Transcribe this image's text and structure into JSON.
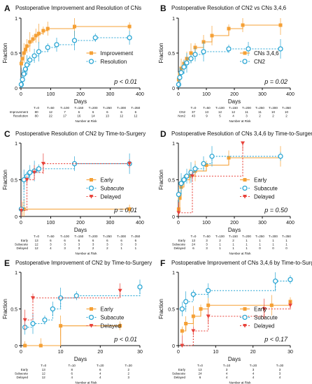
{
  "chart_data": [
    {
      "panel": "A",
      "type": "line",
      "title": "Postoperative Improvement and Resolution of CNs",
      "xlabel": "Days",
      "ylabel": "Fraction",
      "xlim": [
        0,
        400
      ],
      "ylim": [
        0,
        1
      ],
      "xticks": [
        0,
        100,
        200,
        300,
        400
      ],
      "yticks": [
        0,
        0.5,
        1
      ],
      "legend_position": "center-right",
      "annotation": "p < 0.01",
      "series": [
        {
          "name": "Improvement",
          "color": "#f5a035",
          "marker": "square",
          "dashed": false,
          "x": [
            1,
            5,
            10,
            15,
            20,
            30,
            40,
            50,
            60,
            75,
            90,
            180,
            365
          ],
          "y": [
            0.35,
            0.42,
            0.5,
            0.55,
            0.6,
            0.66,
            0.7,
            0.75,
            0.78,
            0.82,
            0.85,
            0.88,
            0.88
          ]
        },
        {
          "name": "Resolution",
          "color": "#2aa6d4",
          "marker": "circle",
          "dashed": true,
          "x": [
            1,
            5,
            10,
            15,
            20,
            30,
            45,
            60,
            90,
            120,
            180,
            250,
            365
          ],
          "y": [
            0.05,
            0.12,
            0.2,
            0.27,
            0.33,
            0.4,
            0.46,
            0.52,
            0.58,
            0.62,
            0.68,
            0.72,
            0.72
          ]
        }
      ],
      "risk_table": {
        "times": [
          "T=0",
          "T=50",
          "T=100",
          "T=150",
          "T=200",
          "T=250",
          "T=300",
          "T=350"
        ],
        "rows": [
          {
            "label": "Improvement",
            "values": [
              "80",
              "12",
              "7",
              "6",
              "6",
              "6",
              "6",
              "6"
            ]
          },
          {
            "label": "Resolution",
            "values": [
              "80",
              "22",
              "17",
              "16",
              "14",
              "13",
              "12",
              "12"
            ]
          }
        ],
        "caption": "Number at Risk"
      }
    },
    {
      "panel": "B",
      "type": "line",
      "title": "Postoperative Resolution of CN2 vs CNs 3,4,6",
      "xlabel": "Days",
      "ylabel": "Fraction",
      "xlim": [
        0,
        400
      ],
      "ylim": [
        0,
        1
      ],
      "xticks": [
        0,
        100,
        200,
        300,
        400
      ],
      "yticks": [
        0,
        0.5,
        1
      ],
      "legend_position": "center-right",
      "annotation": "p = 0.02",
      "series": [
        {
          "name": "CNs 3,4,6",
          "color": "#f5a035",
          "marker": "square",
          "dashed": false,
          "x": [
            1,
            5,
            10,
            20,
            30,
            45,
            60,
            90,
            120,
            180,
            230,
            365
          ],
          "y": [
            0.12,
            0.2,
            0.28,
            0.35,
            0.42,
            0.5,
            0.58,
            0.66,
            0.75,
            0.85,
            0.9,
            0.9
          ]
        },
        {
          "name": "CN2",
          "color": "#2aa6d4",
          "marker": "circle",
          "dashed": true,
          "x": [
            1,
            5,
            10,
            20,
            30,
            45,
            60,
            90,
            180,
            250,
            365
          ],
          "y": [
            0.05,
            0.15,
            0.22,
            0.3,
            0.36,
            0.42,
            0.48,
            0.52,
            0.56,
            0.56,
            0.56
          ]
        }
      ],
      "risk_table": {
        "times": [
          "T=0",
          "T=50",
          "T=100",
          "T=150",
          "T=200",
          "T=250",
          "T=300",
          "T=350"
        ],
        "rows": [
          {
            "label": "CN2",
            "values": [
              "37",
              "13",
              "12",
              "12",
              "11",
              "11",
              "10",
              "10"
            ]
          },
          {
            "label": "Non2",
            "values": [
              "43",
              "9",
              "5",
              "4",
              "3",
              "2",
              "2",
              "2"
            ]
          }
        ],
        "caption": "Number at Risk"
      }
    },
    {
      "panel": "C",
      "type": "line",
      "title": "Postoperative Resolution of CN2 by Time-to-Surgery",
      "xlabel": "Days",
      "ylabel": "Fraction",
      "xlim": [
        0,
        400
      ],
      "ylim": [
        0,
        1
      ],
      "xticks": [
        0,
        100,
        200,
        300,
        400
      ],
      "yticks": [
        0,
        0.5,
        1
      ],
      "legend_position": "center-right",
      "annotation": "p = 0.01",
      "series": [
        {
          "name": "Early",
          "color": "#f5a035",
          "marker": "square",
          "dashed": false,
          "x": [
            1,
            5,
            10,
            365
          ],
          "y": [
            0.1,
            0.1,
            0.1,
            0.1
          ]
        },
        {
          "name": "Subacute",
          "color": "#2aa6d4",
          "marker": "circle",
          "dashed": true,
          "x": [
            1,
            10,
            20,
            30,
            45,
            60,
            180,
            365
          ],
          "y": [
            0.1,
            0.5,
            0.55,
            0.6,
            0.62,
            0.65,
            0.72,
            0.72
          ]
        },
        {
          "name": "Delayed",
          "color": "#e8423a",
          "marker": "triangle",
          "dashed": true,
          "x": [
            1,
            20,
            45,
            75,
            365
          ],
          "y": [
            0.08,
            0.5,
            0.6,
            0.72,
            0.72
          ]
        }
      ],
      "risk_table": {
        "times": [
          "T=0",
          "T=50",
          "T=100",
          "T=150",
          "T=200",
          "T=250",
          "T=300",
          "T=350"
        ],
        "rows": [
          {
            "label": "Early",
            "values": [
              "13",
              "6",
              "6",
              "6",
              "6",
              "6",
              "6",
              "6"
            ]
          },
          {
            "label": "Subacute",
            "values": [
              "12",
              "3",
              "3",
              "3",
              "3",
              "3",
              "3",
              "3"
            ]
          },
          {
            "label": "Delayed",
            "values": [
              "12",
              "4",
              "3",
              "3",
              "2",
              "2",
              "1",
              "1"
            ]
          }
        ],
        "caption": "Number at Risk"
      }
    },
    {
      "panel": "D",
      "type": "line",
      "title": "Postoperative Resolution of CNs 3,4,6 by Time-to-Surgery",
      "xlabel": "Days",
      "ylabel": "Fraction",
      "xlim": [
        0,
        400
      ],
      "ylim": [
        0,
        1
      ],
      "xticks": [
        0,
        100,
        200,
        300,
        400
      ],
      "yticks": [
        0,
        0.5,
        1
      ],
      "legend_position": "center-right",
      "annotation": "p = 0.50",
      "series": [
        {
          "name": "Early",
          "color": "#f5a035",
          "marker": "square",
          "dashed": false,
          "x": [
            1,
            5,
            10,
            20,
            40,
            60,
            100,
            180,
            365
          ],
          "y": [
            0.1,
            0.25,
            0.4,
            0.5,
            0.55,
            0.62,
            0.7,
            0.8,
            0.82
          ]
        },
        {
          "name": "Subacute",
          "color": "#2aa6d4",
          "marker": "circle",
          "dashed": true,
          "x": [
            1,
            10,
            20,
            30,
            45,
            60,
            90,
            120,
            365
          ],
          "y": [
            0.3,
            0.45,
            0.5,
            0.55,
            0.6,
            0.65,
            0.72,
            0.82,
            0.82
          ]
        },
        {
          "name": "Delayed",
          "color": "#e8423a",
          "marker": "triangle",
          "dashed": true,
          "x": [
            1,
            50,
            230
          ],
          "y": [
            0.05,
            0.55,
            1.0
          ]
        }
      ],
      "risk_table": {
        "times": [
          "T=0",
          "T=50",
          "T=100",
          "T=150",
          "T=200",
          "T=250",
          "T=300",
          "T=350"
        ],
        "rows": [
          {
            "label": "Early",
            "values": [
              "13",
              "3",
              "2",
              "2",
              "1",
              "1",
              "1",
              "1"
            ]
          },
          {
            "label": "Subacute",
            "values": [
              "24",
              "3",
              "1",
              "1",
              "1",
              "1",
              "1",
              "1"
            ]
          },
          {
            "label": "Delayed",
            "values": [
              "6",
              "3",
              "1",
              "1",
              "1",
              "0",
              "0",
              "0"
            ]
          }
        ],
        "caption": "Number at Risk"
      }
    },
    {
      "panel": "E",
      "type": "line",
      "title": "Postoperative Improvement of CN2 by Time-to-Surgery",
      "xlabel": "Days",
      "ylabel": "Fraction",
      "xlim": [
        0,
        30
      ],
      "ylim": [
        0,
        1
      ],
      "xticks": [
        0,
        10,
        20,
        30
      ],
      "yticks": [
        0,
        0.5,
        1
      ],
      "legend_position": "center-right",
      "annotation": "p < 0.01",
      "series": [
        {
          "name": "Early",
          "color": "#f5a035",
          "marker": "square",
          "dashed": false,
          "x": [
            1,
            5,
            10,
            25
          ],
          "y": [
            0.0,
            0.0,
            0.27,
            0.27
          ]
        },
        {
          "name": "Subacute",
          "color": "#2aa6d4",
          "marker": "circle",
          "dashed": true,
          "x": [
            1,
            3,
            6,
            8,
            10,
            14,
            30
          ],
          "y": [
            0.25,
            0.3,
            0.35,
            0.5,
            0.65,
            0.68,
            0.8
          ]
        },
        {
          "name": "Delayed",
          "color": "#e8423a",
          "marker": "triangle",
          "dashed": true,
          "x": [
            1,
            3,
            25
          ],
          "y": [
            0.35,
            0.65,
            0.75
          ]
        }
      ],
      "risk_table": {
        "times": [
          "T=0",
          "T=10",
          "T=20",
          "T=30"
        ],
        "rows": [
          {
            "label": "Early",
            "values": [
              "13",
              "8",
              "6",
              "2"
            ]
          },
          {
            "label": "Subacute",
            "values": [
              "12",
              "6",
              "4",
              "2"
            ]
          },
          {
            "label": "Delayed",
            "values": [
              "12",
              "4",
              "4",
              "3"
            ]
          }
        ],
        "caption": "Number at Risk"
      }
    },
    {
      "panel": "F",
      "type": "line",
      "title": "Postoperative Improvement of CNs 3,4,6 by Time-to-Surgery",
      "xlabel": "Days",
      "ylabel": "Fraction",
      "xlim": [
        0,
        30
      ],
      "ylim": [
        0,
        1
      ],
      "xticks": [
        0,
        10,
        20,
        30
      ],
      "yticks": [
        0,
        0.5,
        1
      ],
      "legend_position": "center-right",
      "annotation": "p < 0.17",
      "series": [
        {
          "name": "Early",
          "color": "#f5a035",
          "marker": "square",
          "dashed": false,
          "x": [
            1,
            2,
            4,
            6,
            8,
            25,
            30
          ],
          "y": [
            0.2,
            0.3,
            0.4,
            0.5,
            0.55,
            0.55,
            0.6
          ]
        },
        {
          "name": "Subacute",
          "color": "#2aa6d4",
          "marker": "circle",
          "dashed": true,
          "x": [
            1,
            2,
            4,
            8,
            26,
            30
          ],
          "y": [
            0.5,
            0.6,
            0.7,
            0.75,
            0.88,
            0.9
          ]
        },
        {
          "name": "Delayed",
          "color": "#e8423a",
          "marker": "triangle",
          "dashed": true,
          "x": [
            1,
            4,
            8,
            23,
            30
          ],
          "y": [
            0.0,
            0.2,
            0.4,
            0.5,
            0.55
          ]
        }
      ],
      "risk_table": {
        "times": [
          "T=0",
          "T=10",
          "T=20",
          "T=30"
        ],
        "rows": [
          {
            "label": "Early",
            "values": [
              "13",
              "3",
              "3",
              "3"
            ]
          },
          {
            "label": "Subacute",
            "values": [
              "24",
              "4",
              "4",
              "3"
            ]
          },
          {
            "label": "Delayed",
            "values": [
              "6",
              "4",
              "4",
              "4"
            ]
          }
        ],
        "caption": "Number at Risk"
      }
    }
  ]
}
